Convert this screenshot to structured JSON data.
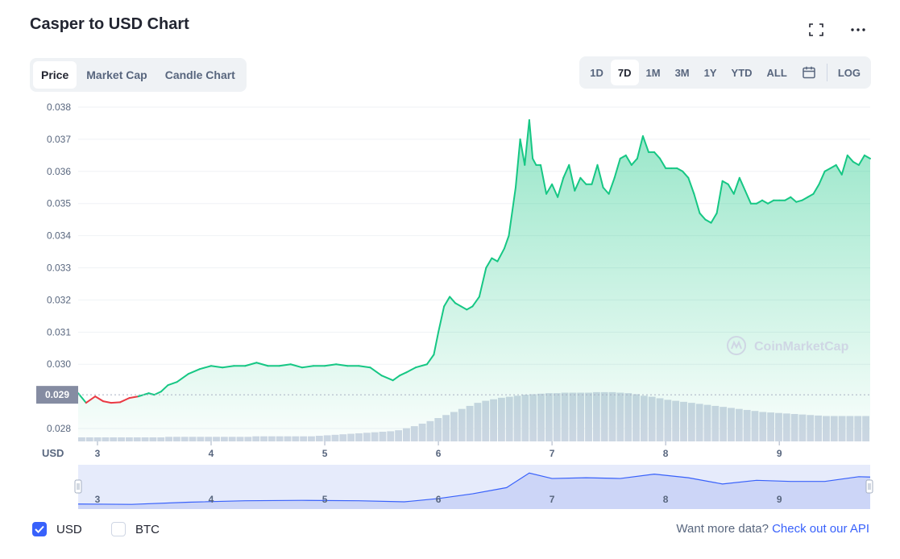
{
  "header": {
    "title": "Casper to USD Chart",
    "fullscreen_icon": "fullscreen-icon",
    "more_icon": "more-icon"
  },
  "view_tabs": [
    {
      "label": "Price",
      "active": true
    },
    {
      "label": "Market Cap",
      "active": false
    },
    {
      "label": "Candle Chart",
      "active": false
    }
  ],
  "range_tabs": [
    {
      "label": "1D",
      "active": false
    },
    {
      "label": "7D",
      "active": true
    },
    {
      "label": "1M",
      "active": false
    },
    {
      "label": "3M",
      "active": false
    },
    {
      "label": "1Y",
      "active": false
    },
    {
      "label": "YTD",
      "active": false
    },
    {
      "label": "ALL",
      "active": false
    }
  ],
  "calendar_icon": "calendar-icon",
  "log_label": "LOG",
  "colors": {
    "up": "#16c784",
    "down": "#ea3943",
    "volume": "#cfd6e4",
    "nav_line": "#3861fb",
    "accent": "#3861fb"
  },
  "chart_data": {
    "type": "line",
    "currency_label": "USD",
    "y_ticks": [
      "0.038",
      "0.037",
      "0.036",
      "0.035",
      "0.034",
      "0.033",
      "0.032",
      "0.031",
      "0.030",
      "0.028"
    ],
    "ylim": [
      0.0276,
      0.038
    ],
    "x_ticks": [
      "3",
      "4",
      "5",
      "6",
      "7",
      "8",
      "9"
    ],
    "xlim": [
      2.83,
      9.8
    ],
    "baseline_label": "0.029",
    "baseline_value": 0.02905,
    "watermark": "CoinMarketCap",
    "series": [
      {
        "x": [
          2.83,
          2.9,
          2.98,
          3.05,
          3.12,
          3.2,
          3.28,
          3.36,
          3.45,
          3.5,
          3.56,
          3.62,
          3.7,
          3.8,
          3.9,
          4.0,
          4.1,
          4.2,
          4.3,
          4.4,
          4.5,
          4.6,
          4.7,
          4.8,
          4.9,
          5.0,
          5.1,
          5.2,
          5.3,
          5.4,
          5.5,
          5.6,
          5.66,
          5.72,
          5.8,
          5.9,
          5.96,
          6.0,
          6.05,
          6.1,
          6.15,
          6.2,
          6.25,
          6.3,
          6.36,
          6.42,
          6.47,
          6.52,
          6.58,
          6.62,
          6.68,
          6.72,
          6.76,
          6.8,
          6.83,
          6.86,
          6.9,
          6.95,
          7.0,
          7.05,
          7.1,
          7.15,
          7.2,
          7.25,
          7.3,
          7.35,
          7.4,
          7.45,
          7.5,
          7.55,
          7.6,
          7.65,
          7.7,
          7.75,
          7.8,
          7.85,
          7.9,
          7.95,
          8.0,
          8.05,
          8.1,
          8.15,
          8.2,
          8.25,
          8.3,
          8.35,
          8.4,
          8.45,
          8.5,
          8.55,
          8.6,
          8.65,
          8.7,
          8.75,
          8.8,
          8.85,
          8.9,
          8.95,
          9.0,
          9.05,
          9.1,
          9.15,
          9.2,
          9.25,
          9.3,
          9.35,
          9.4,
          9.45,
          9.5,
          9.55,
          9.6,
          9.65,
          9.7,
          9.75,
          9.8
        ],
        "y": [
          0.0291,
          0.0288,
          0.029,
          0.02885,
          0.0288,
          0.02882,
          0.02895,
          0.029,
          0.0291,
          0.02905,
          0.02915,
          0.02935,
          0.02945,
          0.0297,
          0.02985,
          0.02995,
          0.0299,
          0.02995,
          0.02995,
          0.03005,
          0.02995,
          0.02995,
          0.03,
          0.0299,
          0.02995,
          0.02995,
          0.03,
          0.02995,
          0.02995,
          0.0299,
          0.02965,
          0.0295,
          0.02965,
          0.02975,
          0.0299,
          0.03,
          0.0303,
          0.031,
          0.0318,
          0.0321,
          0.0319,
          0.0318,
          0.0317,
          0.0318,
          0.0321,
          0.033,
          0.0333,
          0.0332,
          0.0336,
          0.034,
          0.0355,
          0.037,
          0.0362,
          0.0376,
          0.0364,
          0.0362,
          0.0362,
          0.0353,
          0.0356,
          0.0352,
          0.0358,
          0.0362,
          0.0354,
          0.0358,
          0.0356,
          0.0356,
          0.0362,
          0.0355,
          0.0353,
          0.0358,
          0.0364,
          0.0365,
          0.0362,
          0.0364,
          0.0371,
          0.0366,
          0.0366,
          0.0364,
          0.0361,
          0.0361,
          0.0361,
          0.036,
          0.0358,
          0.0353,
          0.0347,
          0.0345,
          0.0344,
          0.0347,
          0.0357,
          0.0356,
          0.0353,
          0.0358,
          0.0354,
          0.035,
          0.035,
          0.0351,
          0.035,
          0.0351,
          0.0351,
          0.0351,
          0.0352,
          0.03505,
          0.0351,
          0.0352,
          0.0353,
          0.0356,
          0.036,
          0.0361,
          0.0362,
          0.0359,
          0.0365,
          0.0363,
          0.0362,
          0.0365,
          0.0364
        ]
      }
    ],
    "volume": [
      0.08,
      0.08,
      0.08,
      0.08,
      0.08,
      0.08,
      0.08,
      0.08,
      0.08,
      0.08,
      0.08,
      0.09,
      0.09,
      0.09,
      0.09,
      0.09,
      0.09,
      0.09,
      0.09,
      0.09,
      0.09,
      0.09,
      0.1,
      0.1,
      0.1,
      0.1,
      0.1,
      0.1,
      0.1,
      0.1,
      0.11,
      0.12,
      0.13,
      0.14,
      0.15,
      0.16,
      0.17,
      0.18,
      0.19,
      0.2,
      0.22,
      0.26,
      0.3,
      0.35,
      0.4,
      0.46,
      0.52,
      0.58,
      0.64,
      0.7,
      0.76,
      0.8,
      0.83,
      0.86,
      0.88,
      0.9,
      0.92,
      0.93,
      0.94,
      0.95,
      0.95,
      0.96,
      0.96,
      0.96,
      0.96,
      0.97,
      0.97,
      0.97,
      0.96,
      0.95,
      0.93,
      0.9,
      0.88,
      0.85,
      0.82,
      0.8,
      0.78,
      0.76,
      0.74,
      0.72,
      0.7,
      0.68,
      0.66,
      0.64,
      0.62,
      0.6,
      0.58,
      0.57,
      0.56,
      0.55,
      0.54,
      0.53,
      0.52,
      0.51,
      0.5,
      0.5,
      0.5,
      0.5,
      0.5,
      0.5
    ],
    "navigator": {
      "x": [
        2.83,
        3.3,
        3.8,
        4.3,
        4.8,
        5.3,
        5.7,
        6.0,
        6.3,
        6.6,
        6.8,
        7.0,
        7.3,
        7.6,
        7.9,
        8.2,
        8.5,
        8.8,
        9.1,
        9.4,
        9.7,
        9.8
      ],
      "y": [
        0.029,
        0.0289,
        0.0295,
        0.0299,
        0.03,
        0.0299,
        0.0296,
        0.0305,
        0.0318,
        0.0335,
        0.0375,
        0.036,
        0.0362,
        0.036,
        0.0372,
        0.0362,
        0.0345,
        0.0355,
        0.0352,
        0.0352,
        0.0365,
        0.0364
      ]
    }
  },
  "footer": {
    "checkboxes": [
      {
        "label": "USD",
        "checked": true
      },
      {
        "label": "BTC",
        "checked": false
      }
    ],
    "cta_text": "Want more data?",
    "cta_link": "Check out our API"
  }
}
